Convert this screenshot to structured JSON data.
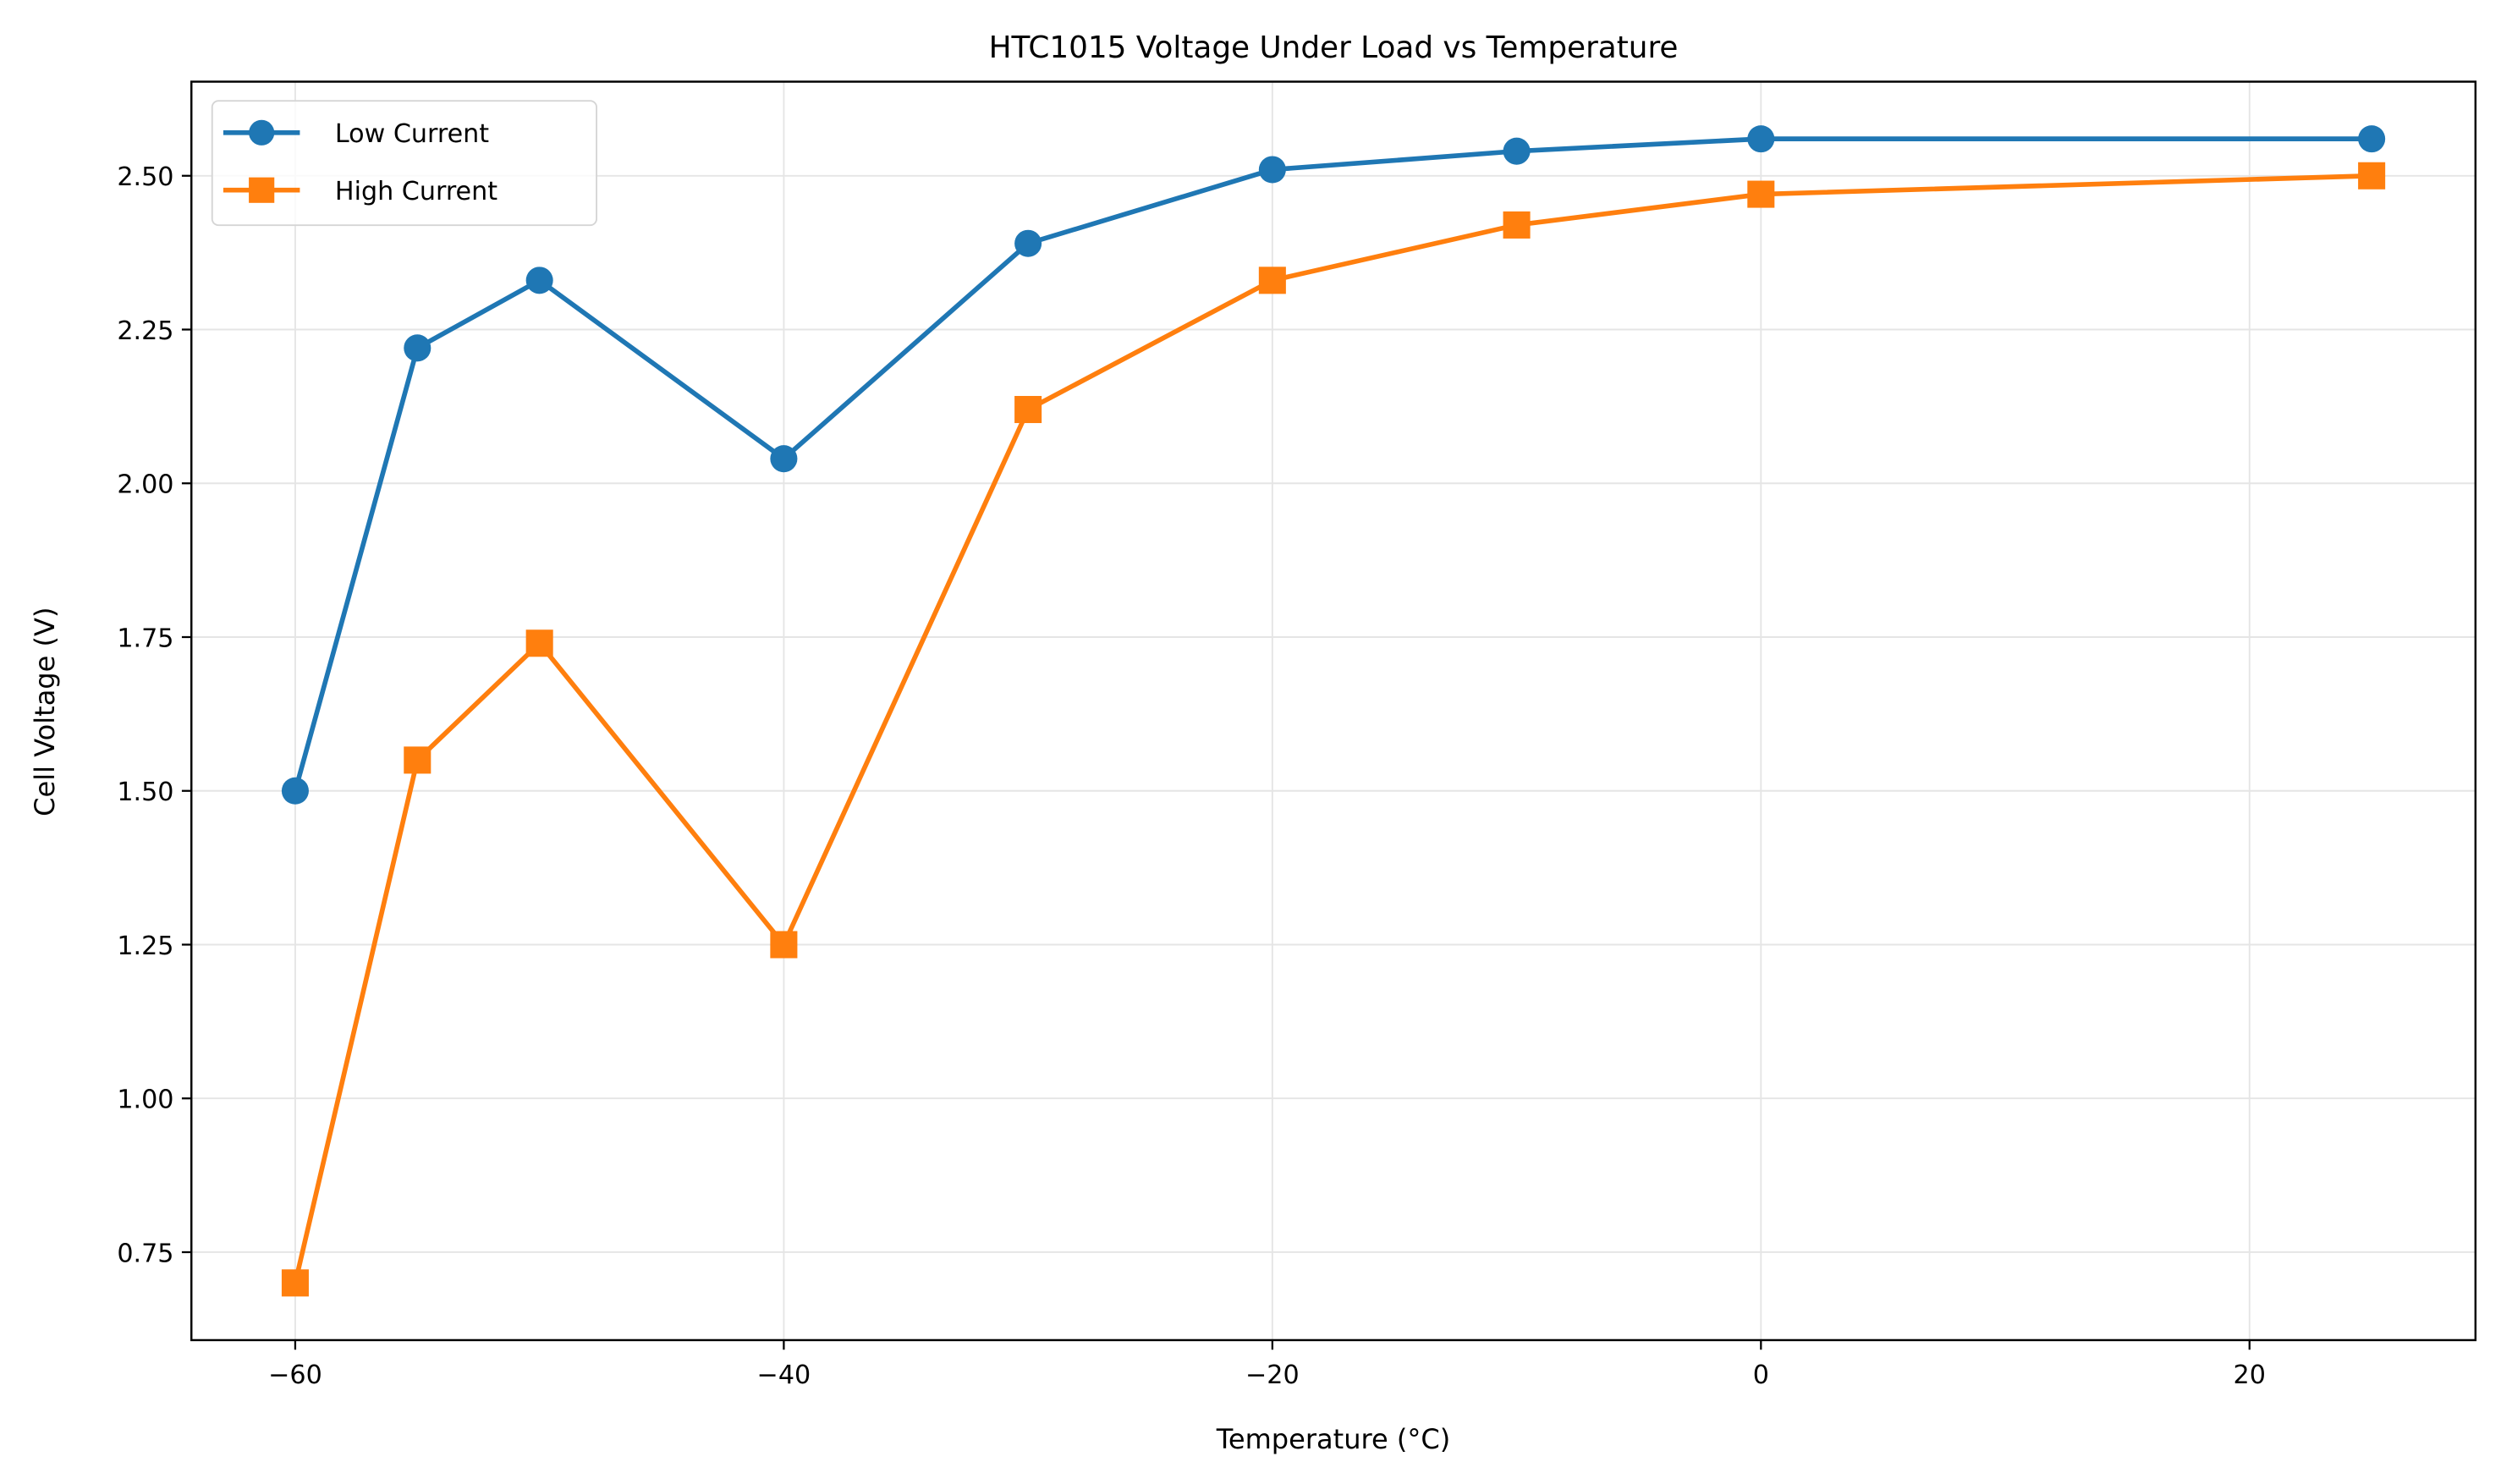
{
  "chart_data": {
    "type": "line",
    "title": "HTC1015 Voltage Under Load vs Temperature",
    "xlabel": "Temperature (°C)",
    "ylabel": "Cell Voltage (V)",
    "xlim": [
      -64.25,
      29.25
    ],
    "ylim": [
      0.607,
      2.653
    ],
    "xticks": [
      -60,
      -40,
      -20,
      0,
      20
    ],
    "xtick_labels": [
      "−60",
      "−40",
      "−20",
      "0",
      "20"
    ],
    "yticks": [
      0.75,
      1.0,
      1.25,
      1.5,
      1.75,
      2.0,
      2.25,
      2.5
    ],
    "ytick_labels": [
      "0.75",
      "1.00",
      "1.25",
      "1.50",
      "1.75",
      "2.00",
      "2.25",
      "2.50"
    ],
    "grid": true,
    "legend_position": "top-left",
    "x": [
      -60,
      -55,
      -50,
      -40,
      -30,
      -20,
      -10,
      0,
      25
    ],
    "series": [
      {
        "name": "Low Current",
        "color": "#1f77b4",
        "marker": "circle",
        "values": [
          1.5,
          2.22,
          2.33,
          2.04,
          2.39,
          2.51,
          2.54,
          2.56,
          2.56
        ]
      },
      {
        "name": "High Current",
        "color": "#ff7f0e",
        "marker": "square",
        "values": [
          0.7,
          1.55,
          1.74,
          1.25,
          2.12,
          2.33,
          2.42,
          2.47,
          2.5
        ]
      }
    ]
  }
}
